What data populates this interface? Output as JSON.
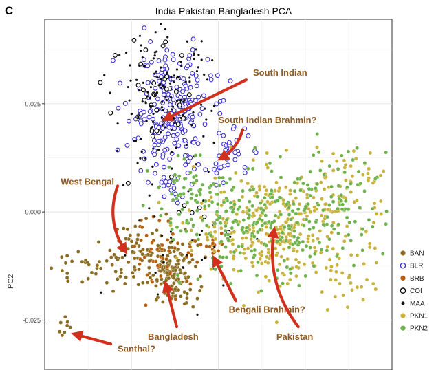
{
  "panel_letter": "C",
  "chart_data": {
    "type": "scatter",
    "title": "India Pakistan Bangladesh PCA",
    "xlabel": "",
    "ylabel": "PC2",
    "ylim": [
      -0.0365,
      0.0445
    ],
    "xlim": [
      0,
      1
    ],
    "y_ticks": [
      0.025,
      0.0,
      -0.025
    ],
    "y_tick_labels": [
      "0.025",
      "0.000",
      "-0.025"
    ],
    "x_tick_labels": [],
    "grid": true,
    "legend_position": "right",
    "series": [
      {
        "name": "BAN",
        "marker": "filled-circle",
        "fill": "#8a6d22",
        "stroke": "#8a6d22",
        "clusters": [
          {
            "x": 0.37,
            "y": -0.0145,
            "sx": 0.035,
            "sy": 0.0035,
            "n": 140
          },
          {
            "x": 0.28,
            "y": -0.0085,
            "sx": 0.05,
            "sy": 0.004,
            "n": 60
          },
          {
            "x": 0.12,
            "y": -0.0125,
            "sx": 0.05,
            "sy": 0.003,
            "n": 35
          },
          {
            "x": 0.05,
            "y": -0.026,
            "sx": 0.01,
            "sy": 0.0015,
            "n": 8
          }
        ]
      },
      {
        "name": "BLR",
        "marker": "open-circle",
        "fill": "#ffffff",
        "stroke": "#3a2fd0",
        "clusters": [
          {
            "x": 0.36,
            "y": 0.0235,
            "sx": 0.06,
            "sy": 0.007,
            "n": 230
          },
          {
            "x": 0.53,
            "y": 0.0135,
            "sx": 0.03,
            "sy": 0.003,
            "n": 35
          },
          {
            "x": 0.38,
            "y": 0.0075,
            "sx": 0.03,
            "sy": 0.004,
            "n": 25
          }
        ]
      },
      {
        "name": "BRB",
        "marker": "filled-circle",
        "fill": "#b5600c",
        "stroke": "#b5600c",
        "clusters": [
          {
            "x": 0.35,
            "y": -0.0095,
            "sx": 0.05,
            "sy": 0.004,
            "n": 50
          },
          {
            "x": 0.48,
            "y": -0.0075,
            "sx": 0.02,
            "sy": 0.002,
            "n": 15
          }
        ]
      },
      {
        "name": "COI",
        "marker": "open-circle",
        "fill": "#ffffff",
        "stroke": "#000000",
        "clusters": [
          {
            "x": 0.31,
            "y": 0.0245,
            "sx": 0.07,
            "sy": 0.007,
            "n": 35
          },
          {
            "x": 0.45,
            "y": -0.003,
            "sx": 0.06,
            "sy": 0.004,
            "n": 8
          }
        ]
      },
      {
        "name": "MAA",
        "marker": "small-dot",
        "fill": "#111111",
        "stroke": "#111111",
        "clusters": [
          {
            "x": 0.34,
            "y": 0.0255,
            "sx": 0.07,
            "sy": 0.008,
            "n": 140
          },
          {
            "x": 0.4,
            "y": -0.008,
            "sx": 0.1,
            "sy": 0.006,
            "n": 30
          }
        ]
      },
      {
        "name": "PKN1",
        "marker": "filled-circle",
        "fill": "#c9b23c",
        "stroke": "#c9b23c",
        "clusters": [
          {
            "x": 0.66,
            "y": -0.0035,
            "sx": 0.11,
            "sy": 0.0065,
            "n": 300
          },
          {
            "x": 0.86,
            "y": 0.0055,
            "sx": 0.07,
            "sy": 0.005,
            "n": 70
          },
          {
            "x": 0.87,
            "y": -0.0155,
            "sx": 0.05,
            "sy": 0.004,
            "n": 30
          }
        ]
      },
      {
        "name": "PKN2",
        "marker": "filled-circle",
        "fill": "#6db24a",
        "stroke": "#6db24a",
        "clusters": [
          {
            "x": 0.64,
            "y": -0.0035,
            "sx": 0.12,
            "sy": 0.0065,
            "n": 220
          },
          {
            "x": 0.43,
            "y": 0.0035,
            "sx": 0.06,
            "sy": 0.004,
            "n": 70
          },
          {
            "x": 0.88,
            "y": 0.003,
            "sx": 0.07,
            "sy": 0.007,
            "n": 60
          }
        ]
      }
    ],
    "annotations": [
      {
        "text": "South Indian",
        "x": 0.6,
        "y": 0.0315,
        "anchor": "start",
        "arrow_from": [
          0.58,
          0.0305
        ],
        "arrow_to": [
          0.35,
          0.0215
        ],
        "curve": 0
      },
      {
        "text": "South Indian Brahmin?",
        "x": 0.5,
        "y": 0.0205,
        "anchor": "start",
        "arrow_from": [
          0.57,
          0.019
        ],
        "arrow_to": [
          0.51,
          0.0125
        ],
        "curve": -0.02
      },
      {
        "text": "West Bengal",
        "x": 0.2,
        "y": 0.0063,
        "anchor": "end",
        "arrow_from": [
          0.21,
          0.006
        ],
        "arrow_to": [
          0.23,
          -0.0088
        ],
        "curve": 0.045
      },
      {
        "text": "Bengali Brahmin?",
        "x": 0.53,
        "y": -0.0232,
        "anchor": "start",
        "arrow_from": [
          0.55,
          -0.0205
        ],
        "arrow_to": [
          0.49,
          -0.011
        ],
        "curve": 0
      },
      {
        "text": "Bangladesh",
        "x": 0.37,
        "y": -0.0295,
        "anchor": "middle",
        "arrow_from": [
          0.38,
          -0.0265
        ],
        "arrow_to": [
          0.35,
          -0.017
        ],
        "curve": 0
      },
      {
        "text": "Santhal?",
        "x": 0.21,
        "y": -0.0323,
        "anchor": "start",
        "arrow_from": [
          0.19,
          -0.0305
        ],
        "arrow_to": [
          0.09,
          -0.0283
        ],
        "curve": 0
      },
      {
        "text": "Pakistan",
        "x": 0.72,
        "y": -0.0295,
        "anchor": "middle",
        "arrow_from": [
          0.73,
          -0.0265
        ],
        "arrow_to": [
          0.66,
          -0.0045
        ],
        "curve": -0.06
      }
    ]
  }
}
